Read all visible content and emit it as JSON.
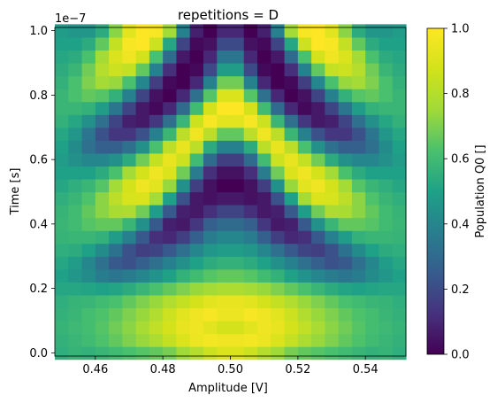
{
  "chart_data": {
    "type": "heatmap",
    "title": "repetitions = D",
    "xlabel": "Amplitude [V]",
    "ylabel": "Time [s]",
    "y_multiplier_label": "1e−7",
    "colorbar_label": "Population Q0 []",
    "colormap": "viridis",
    "xlim": [
      0.448,
      0.552
    ],
    "ylim": [
      -0.01,
      1.01
    ],
    "x_ticks": [
      {
        "value": 0.46,
        "label": "0.46"
      },
      {
        "value": 0.48,
        "label": "0.48"
      },
      {
        "value": 0.5,
        "label": "0.50"
      },
      {
        "value": 0.52,
        "label": "0.52"
      },
      {
        "value": 0.54,
        "label": "0.54"
      }
    ],
    "y_ticks": [
      {
        "value": 0.0,
        "label": "0.0"
      },
      {
        "value": 0.2,
        "label": "0.2"
      },
      {
        "value": 0.4,
        "label": "0.4"
      },
      {
        "value": 0.6,
        "label": "0.6"
      },
      {
        "value": 0.8,
        "label": "0.8"
      },
      {
        "value": 1.0,
        "label": "1.0"
      }
    ],
    "colorbar_ticks": [
      {
        "value": 0.0,
        "label": "0.0"
      },
      {
        "value": 0.2,
        "label": "0.2"
      },
      {
        "value": 0.4,
        "label": "0.4"
      },
      {
        "value": 0.6,
        "label": "0.6"
      },
      {
        "value": 0.8,
        "label": "0.8"
      },
      {
        "value": 1.0,
        "label": "1.0"
      }
    ],
    "value_range": [
      0.0,
      1.0
    ],
    "grid": {
      "nx": 26,
      "ny": 26,
      "x_start": 0.45,
      "x_step": 0.004,
      "y_start": 0.0,
      "y_step": 0.04
    },
    "values": [
      [
        0.55,
        0.57,
        0.56,
        0.58,
        0.6,
        0.62,
        0.64,
        0.66,
        0.69,
        0.75,
        0.8,
        0.86,
        0.9,
        0.9,
        0.86,
        0.8,
        0.75,
        0.69,
        0.66,
        0.64,
        0.62,
        0.6,
        0.58,
        0.56,
        0.57,
        0.55
      ],
      [
        0.56,
        0.58,
        0.6,
        0.63,
        0.66,
        0.7,
        0.74,
        0.78,
        0.84,
        0.9,
        0.95,
        0.97,
        0.96,
        0.96,
        0.97,
        0.95,
        0.9,
        0.84,
        0.78,
        0.74,
        0.7,
        0.66,
        0.63,
        0.6,
        0.58,
        0.56
      ],
      [
        0.57,
        0.59,
        0.61,
        0.64,
        0.68,
        0.72,
        0.77,
        0.83,
        0.88,
        0.94,
        0.96,
        0.92,
        0.88,
        0.88,
        0.92,
        0.96,
        0.94,
        0.88,
        0.83,
        0.77,
        0.72,
        0.68,
        0.64,
        0.61,
        0.59,
        0.57
      ],
      [
        0.56,
        0.58,
        0.61,
        0.63,
        0.66,
        0.7,
        0.74,
        0.79,
        0.86,
        0.92,
        0.96,
        0.98,
        0.95,
        0.95,
        0.98,
        0.96,
        0.92,
        0.86,
        0.79,
        0.74,
        0.7,
        0.66,
        0.63,
        0.61,
        0.58,
        0.56
      ],
      [
        0.55,
        0.57,
        0.58,
        0.6,
        0.62,
        0.66,
        0.7,
        0.74,
        0.79,
        0.84,
        0.88,
        0.92,
        0.94,
        0.94,
        0.92,
        0.88,
        0.84,
        0.79,
        0.74,
        0.7,
        0.66,
        0.62,
        0.6,
        0.58,
        0.57,
        0.55
      ],
      [
        0.52,
        0.52,
        0.51,
        0.5,
        0.51,
        0.54,
        0.58,
        0.62,
        0.66,
        0.7,
        0.74,
        0.76,
        0.78,
        0.78,
        0.76,
        0.74,
        0.7,
        0.66,
        0.62,
        0.58,
        0.54,
        0.51,
        0.5,
        0.51,
        0.52,
        0.52
      ],
      [
        0.5,
        0.46,
        0.42,
        0.36,
        0.34,
        0.36,
        0.4,
        0.45,
        0.5,
        0.56,
        0.6,
        0.64,
        0.66,
        0.66,
        0.64,
        0.6,
        0.56,
        0.5,
        0.45,
        0.4,
        0.36,
        0.34,
        0.36,
        0.42,
        0.46,
        0.5
      ],
      [
        0.52,
        0.48,
        0.4,
        0.32,
        0.24,
        0.22,
        0.26,
        0.32,
        0.38,
        0.44,
        0.5,
        0.54,
        0.56,
        0.56,
        0.54,
        0.5,
        0.44,
        0.38,
        0.32,
        0.26,
        0.22,
        0.24,
        0.32,
        0.4,
        0.48,
        0.52
      ],
      [
        0.55,
        0.54,
        0.5,
        0.42,
        0.33,
        0.22,
        0.16,
        0.18,
        0.24,
        0.32,
        0.4,
        0.46,
        0.48,
        0.48,
        0.46,
        0.4,
        0.32,
        0.24,
        0.18,
        0.16,
        0.22,
        0.33,
        0.42,
        0.5,
        0.54,
        0.55
      ],
      [
        0.57,
        0.58,
        0.58,
        0.56,
        0.48,
        0.38,
        0.24,
        0.12,
        0.1,
        0.16,
        0.26,
        0.36,
        0.4,
        0.4,
        0.36,
        0.26,
        0.16,
        0.1,
        0.12,
        0.24,
        0.38,
        0.48,
        0.56,
        0.58,
        0.58,
        0.57
      ],
      [
        0.58,
        0.6,
        0.64,
        0.66,
        0.66,
        0.58,
        0.44,
        0.24,
        0.08,
        0.06,
        0.14,
        0.26,
        0.3,
        0.3,
        0.26,
        0.14,
        0.06,
        0.08,
        0.24,
        0.44,
        0.58,
        0.66,
        0.66,
        0.64,
        0.6,
        0.58
      ],
      [
        0.57,
        0.6,
        0.66,
        0.72,
        0.77,
        0.78,
        0.68,
        0.48,
        0.24,
        0.08,
        0.06,
        0.12,
        0.18,
        0.18,
        0.12,
        0.06,
        0.08,
        0.24,
        0.48,
        0.68,
        0.78,
        0.77,
        0.72,
        0.66,
        0.6,
        0.57
      ],
      [
        0.55,
        0.58,
        0.63,
        0.72,
        0.82,
        0.89,
        0.9,
        0.76,
        0.5,
        0.22,
        0.06,
        0.04,
        0.06,
        0.06,
        0.04,
        0.06,
        0.22,
        0.5,
        0.76,
        0.9,
        0.89,
        0.82,
        0.72,
        0.63,
        0.58,
        0.55
      ],
      [
        0.52,
        0.55,
        0.58,
        0.64,
        0.76,
        0.88,
        0.96,
        0.92,
        0.74,
        0.44,
        0.16,
        0.04,
        0.0,
        0.0,
        0.04,
        0.16,
        0.44,
        0.74,
        0.92,
        0.96,
        0.88,
        0.76,
        0.64,
        0.58,
        0.55,
        0.52
      ],
      [
        0.5,
        0.5,
        0.5,
        0.54,
        0.62,
        0.76,
        0.88,
        0.96,
        0.9,
        0.68,
        0.36,
        0.12,
        0.04,
        0.04,
        0.12,
        0.36,
        0.68,
        0.9,
        0.96,
        0.88,
        0.76,
        0.62,
        0.54,
        0.5,
        0.5,
        0.5
      ],
      [
        0.48,
        0.44,
        0.4,
        0.4,
        0.44,
        0.54,
        0.68,
        0.84,
        0.94,
        0.86,
        0.6,
        0.3,
        0.16,
        0.16,
        0.3,
        0.6,
        0.86,
        0.94,
        0.84,
        0.68,
        0.54,
        0.44,
        0.4,
        0.4,
        0.44,
        0.48
      ],
      [
        0.5,
        0.42,
        0.32,
        0.26,
        0.26,
        0.32,
        0.44,
        0.62,
        0.82,
        0.94,
        0.82,
        0.54,
        0.38,
        0.38,
        0.54,
        0.82,
        0.94,
        0.82,
        0.62,
        0.44,
        0.32,
        0.26,
        0.26,
        0.32,
        0.42,
        0.5
      ],
      [
        0.52,
        0.46,
        0.34,
        0.22,
        0.14,
        0.14,
        0.22,
        0.38,
        0.58,
        0.82,
        0.96,
        0.82,
        0.66,
        0.66,
        0.82,
        0.96,
        0.82,
        0.58,
        0.38,
        0.22,
        0.14,
        0.14,
        0.22,
        0.34,
        0.46,
        0.52
      ],
      [
        0.56,
        0.52,
        0.44,
        0.32,
        0.18,
        0.08,
        0.06,
        0.14,
        0.32,
        0.58,
        0.86,
        0.98,
        0.92,
        0.92,
        0.98,
        0.86,
        0.58,
        0.32,
        0.14,
        0.06,
        0.08,
        0.18,
        0.32,
        0.44,
        0.52,
        0.56
      ],
      [
        0.58,
        0.58,
        0.56,
        0.48,
        0.34,
        0.18,
        0.06,
        0.02,
        0.1,
        0.3,
        0.6,
        0.88,
        1.0,
        1.0,
        0.88,
        0.6,
        0.3,
        0.1,
        0.02,
        0.06,
        0.18,
        0.34,
        0.48,
        0.56,
        0.58,
        0.58
      ],
      [
        0.58,
        0.62,
        0.66,
        0.64,
        0.56,
        0.38,
        0.18,
        0.04,
        0.0,
        0.1,
        0.32,
        0.64,
        0.9,
        0.9,
        0.64,
        0.32,
        0.1,
        0.0,
        0.04,
        0.18,
        0.38,
        0.56,
        0.64,
        0.66,
        0.62,
        0.58
      ],
      [
        0.56,
        0.62,
        0.7,
        0.76,
        0.74,
        0.62,
        0.4,
        0.16,
        0.02,
        0.0,
        0.1,
        0.38,
        0.68,
        0.68,
        0.38,
        0.1,
        0.0,
        0.02,
        0.16,
        0.4,
        0.62,
        0.74,
        0.76,
        0.7,
        0.62,
        0.56
      ],
      [
        0.54,
        0.58,
        0.68,
        0.8,
        0.86,
        0.84,
        0.66,
        0.38,
        0.12,
        0.0,
        0.02,
        0.2,
        0.48,
        0.48,
        0.2,
        0.02,
        0.0,
        0.12,
        0.38,
        0.66,
        0.84,
        0.86,
        0.8,
        0.68,
        0.58,
        0.54
      ],
      [
        0.52,
        0.54,
        0.62,
        0.76,
        0.9,
        0.96,
        0.88,
        0.62,
        0.3,
        0.06,
        0.0,
        0.1,
        0.34,
        0.34,
        0.1,
        0.0,
        0.06,
        0.3,
        0.62,
        0.88,
        0.96,
        0.9,
        0.76,
        0.62,
        0.54,
        0.52
      ],
      [
        0.5,
        0.5,
        0.54,
        0.66,
        0.84,
        0.98,
        1.0,
        0.86,
        0.52,
        0.18,
        0.02,
        0.04,
        0.2,
        0.2,
        0.04,
        0.02,
        0.18,
        0.52,
        0.86,
        1.0,
        0.98,
        0.84,
        0.66,
        0.54,
        0.5,
        0.5
      ],
      [
        0.48,
        0.46,
        0.46,
        0.54,
        0.72,
        0.92,
        1.0,
        0.98,
        0.76,
        0.38,
        0.08,
        0.0,
        0.1,
        0.1,
        0.0,
        0.08,
        0.38,
        0.76,
        0.98,
        1.0,
        0.92,
        0.72,
        0.54,
        0.46,
        0.46,
        0.48
      ]
    ]
  }
}
